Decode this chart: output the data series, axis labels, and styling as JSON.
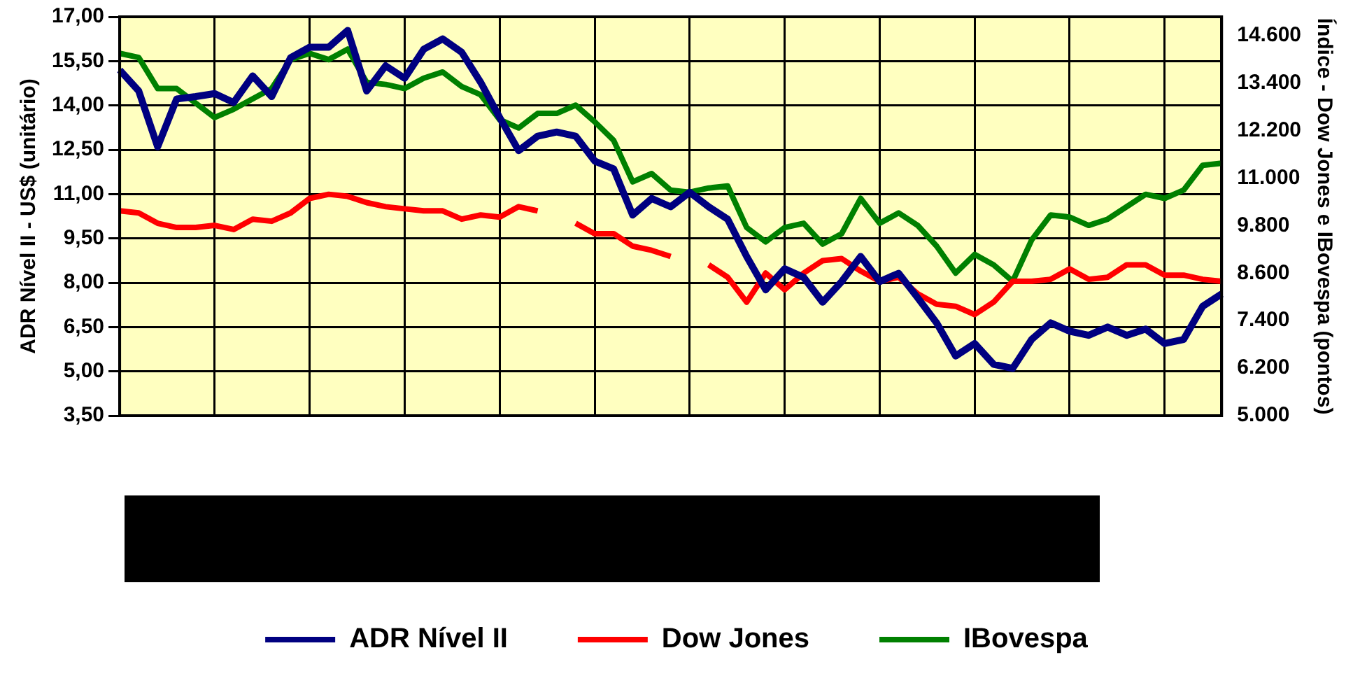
{
  "chart_data": {
    "type": "line",
    "ylabel": "ADR Nível II - US$ (unitário)",
    "y2label": "Índice - Dow Jones e IBovespa (pontos)",
    "categories": [
      null,
      null,
      null,
      null,
      null,
      null,
      null,
      null,
      null,
      null,
      null,
      null,
      null,
      null,
      null,
      null,
      null,
      null,
      null,
      null,
      null,
      null,
      null,
      null,
      null,
      null,
      null,
      null,
      null,
      null,
      null,
      null,
      null,
      null,
      null,
      null,
      null,
      null,
      null,
      null,
      null,
      null,
      null,
      null,
      null,
      null,
      null,
      null,
      null,
      null,
      null,
      null,
      null,
      null,
      null,
      null,
      null,
      null,
      null
    ],
    "series": [
      {
        "name": "ADR Nível II",
        "color": "#000080",
        "values": [
          15.2,
          14.49,
          12.6,
          14.22,
          14.3,
          14.4,
          14.1,
          15.0,
          14.3,
          15.62,
          15.97,
          15.97,
          16.54,
          14.49,
          15.34,
          14.92,
          15.9,
          16.25,
          15.8,
          14.78,
          13.59,
          12.47,
          12.96,
          13.1,
          12.96,
          12.12,
          11.85,
          10.29,
          10.85,
          10.57,
          11.06,
          10.57,
          10.15,
          8.89,
          7.76,
          8.47,
          8.18,
          7.34,
          8.04,
          8.89,
          8.04,
          8.32,
          7.49,
          6.64,
          5.52,
          5.94,
          5.24,
          5.1,
          6.08,
          6.64,
          6.36,
          6.22,
          6.5,
          6.22,
          6.43,
          5.94,
          6.08,
          7.2,
          7.62
        ]
      },
      {
        "name": "Dow Jones",
        "color": "#ff0000",
        "axis": "y2",
        "values": [
          10171,
          10119,
          9857,
          9751,
          9751,
          9804,
          9700,
          9961,
          9909,
          10119,
          10485,
          10589,
          10537,
          10380,
          10276,
          10223,
          10171,
          10171,
          9961,
          10066,
          10014,
          10276,
          10171,
          null,
          9857,
          9594,
          9594,
          9280,
          9175,
          9019,
          null,
          8809,
          8495,
          7867,
          8600,
          8181,
          8600,
          8914,
          8966,
          8652,
          8391,
          8495,
          8077,
          7815,
          7762,
          7553,
          7867,
          8391,
          8391,
          8443,
          8705,
          8443,
          8495,
          8809,
          8809,
          8548,
          8548,
          8443,
          8391
        ]
      },
      {
        "name": "IBovespa",
        "color": "#008000",
        "axis": "y2",
        "values": [
          14147,
          14043,
          13258,
          13258,
          12891,
          12527,
          12736,
          13000,
          13258,
          13990,
          14147,
          13990,
          14253,
          13415,
          13363,
          13258,
          13520,
          13676,
          13310,
          13101,
          12473,
          12264,
          12630,
          12630,
          12840,
          12420,
          11949,
          10903,
          11112,
          10694,
          10642,
          10747,
          10799,
          9751,
          9387,
          9751,
          9857,
          9332,
          9594,
          10485,
          9857,
          10119,
          9804,
          9280,
          8600,
          9071,
          8809,
          8391,
          9437,
          10066,
          10014,
          9804,
          9961,
          10276,
          10589,
          10485,
          10694,
          11321,
          11373
        ]
      }
    ],
    "ylim": [
      3.5,
      17
    ],
    "yticks": [
      {
        "value": 3.5,
        "label": "3,50"
      },
      {
        "value": 5,
        "label": "5,00"
      },
      {
        "value": 6.5,
        "label": "6,50"
      },
      {
        "value": 8,
        "label": "8,00"
      },
      {
        "value": 9.5,
        "label": "9,50"
      },
      {
        "value": 11,
        "label": "11,00"
      },
      {
        "value": 12.5,
        "label": "12,50"
      },
      {
        "value": 14,
        "label": "14,00"
      },
      {
        "value": 15.5,
        "label": "15,50"
      },
      {
        "value": 17,
        "label": "17,00"
      }
    ],
    "y2lim": [
      5000,
      15070
    ],
    "y2ticks": [
      {
        "value": 5000,
        "label": "5.000"
      },
      {
        "value": 6200,
        "label": "6.200"
      },
      {
        "value": 7400,
        "label": "7.400"
      },
      {
        "value": 8600,
        "label": "8.600"
      },
      {
        "value": 9800,
        "label": "9.800"
      },
      {
        "value": 11000,
        "label": "11.000"
      },
      {
        "value": 12200,
        "label": "12.200"
      },
      {
        "value": 13400,
        "label": "13.400"
      },
      {
        "value": 14600,
        "label": "14.600"
      }
    ],
    "grid": true,
    "legend": "bottom",
    "tick_labels": "y",
    "marker": "none",
    "line_style": "solid"
  }
}
